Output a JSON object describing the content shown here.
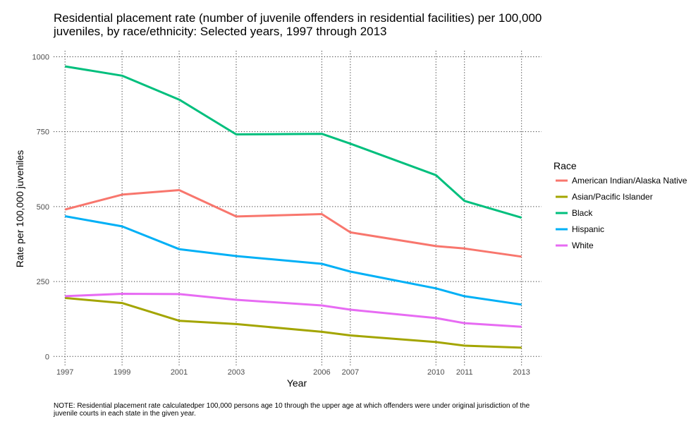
{
  "title": "Residential placement rate (number of juvenile offenders in residential facilities) per 100,000 juveniles, by race/ethnicity: Selected years, 1997 through 2013",
  "note": "NOTE: Residential placement rate calculatedper 100,000 persons age 10 through the upper age at which offenders were under original jurisdiction of the juvenile courts in each state in the given year.",
  "chart_data": {
    "type": "line",
    "title": "Residential placement rate (number of juvenile offenders in residential facilities) per 100,000 juveniles, by race/ethnicity: Selected years, 1997 through 2013",
    "xlabel": "Year",
    "ylabel": "Rate per 100,000 juveniles",
    "x": [
      1997,
      1999,
      2001,
      2003,
      2006,
      2007,
      2010,
      2011,
      2013
    ],
    "x_tick_labels": [
      "1997",
      "1999",
      "2001",
      "2003",
      "2006",
      "2007",
      "2010",
      "2011",
      "2013"
    ],
    "xlim": [
      1996.6,
      2013.7
    ],
    "ylim": [
      -30,
      1020
    ],
    "y_ticks": [
      0,
      250,
      500,
      750,
      1000
    ],
    "y_tick_labels": [
      "0",
      "250",
      "500",
      "750",
      "1000"
    ],
    "grid": "dotted",
    "legend_title": "Race",
    "legend_position": "right",
    "series": [
      {
        "name": "American Indian/Alaska Native",
        "color": "#F8766D",
        "values": [
          490,
          540,
          555,
          467,
          475,
          414,
          368,
          360,
          333
        ]
      },
      {
        "name": "Asian/Pacific Islander",
        "color": "#A3A500",
        "values": [
          195,
          178,
          119,
          108,
          82,
          70,
          48,
          36,
          29
        ]
      },
      {
        "name": "Black",
        "color": "#00BF7D",
        "values": [
          968,
          937,
          857,
          741,
          743,
          710,
          605,
          519,
          463
        ]
      },
      {
        "name": "Hispanic",
        "color": "#00B0F6",
        "values": [
          468,
          434,
          358,
          335,
          309,
          283,
          227,
          201,
          173
        ]
      },
      {
        "name": "White",
        "color": "#E76BF3",
        "values": [
          201,
          209,
          208,
          189,
          170,
          156,
          128,
          111,
          99
        ]
      }
    ]
  }
}
